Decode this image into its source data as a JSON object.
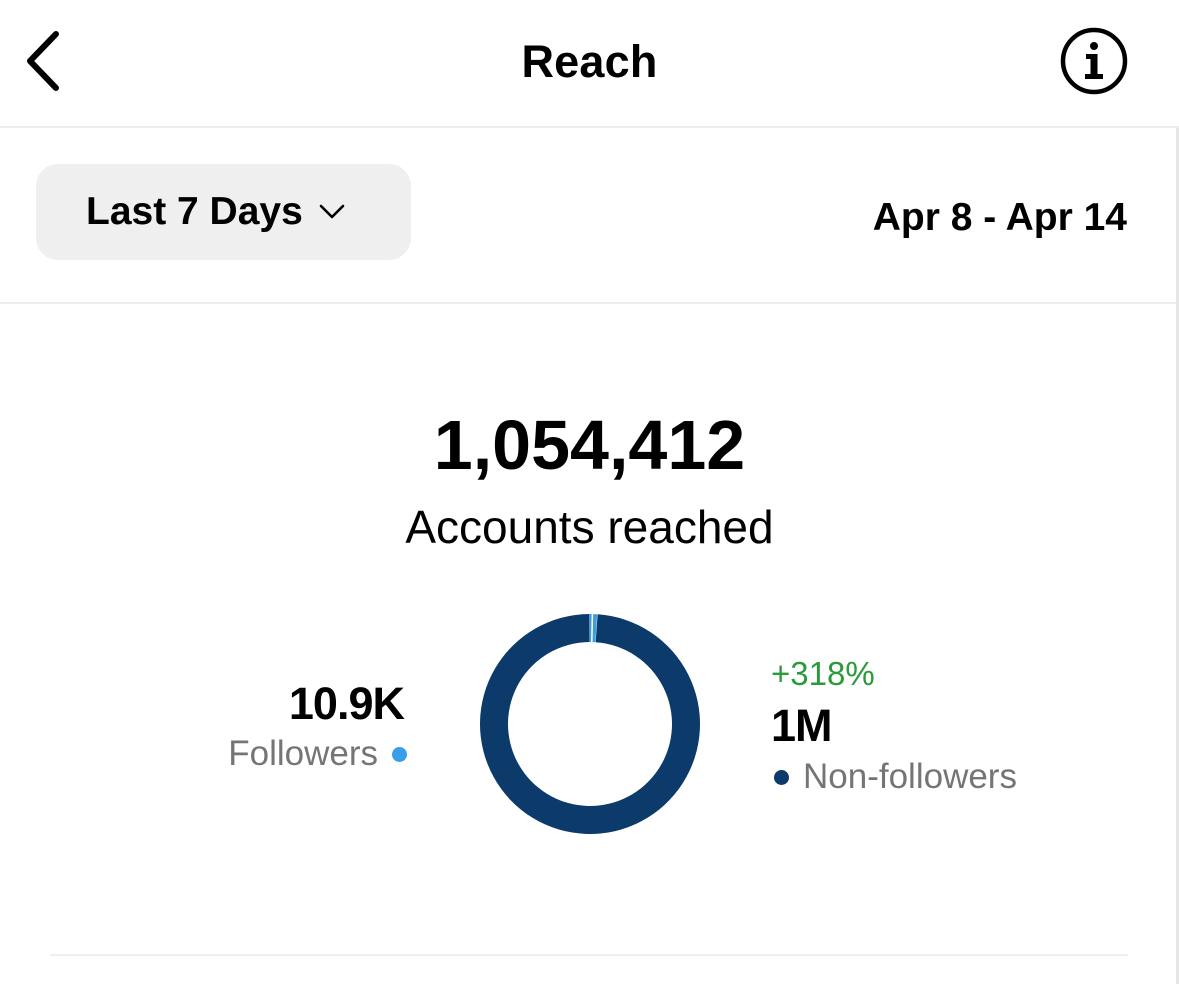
{
  "header": {
    "title": "Reach",
    "back_icon": "chevron-left-icon",
    "info_icon": "info-icon"
  },
  "filter": {
    "range_label": "Last 7 Days",
    "chevron_icon": "chevron-down-icon",
    "date_range": "Apr 8 - Apr 14"
  },
  "summary": {
    "total": "1,054,412",
    "total_label": "Accounts reached"
  },
  "chart_data": {
    "type": "pie",
    "categories": [
      "Followers",
      "Non-followers"
    ],
    "values": [
      10.9,
      1043.5
    ],
    "colors": [
      "#3a9de8",
      "#0b3a6b"
    ]
  },
  "breakdown": {
    "followers": {
      "value": "10.9K",
      "label": "Followers",
      "color": "#3a9de8"
    },
    "non_followers": {
      "change": "+318%",
      "value": "1M",
      "label": "Non-followers",
      "color": "#0b3a6b"
    }
  }
}
